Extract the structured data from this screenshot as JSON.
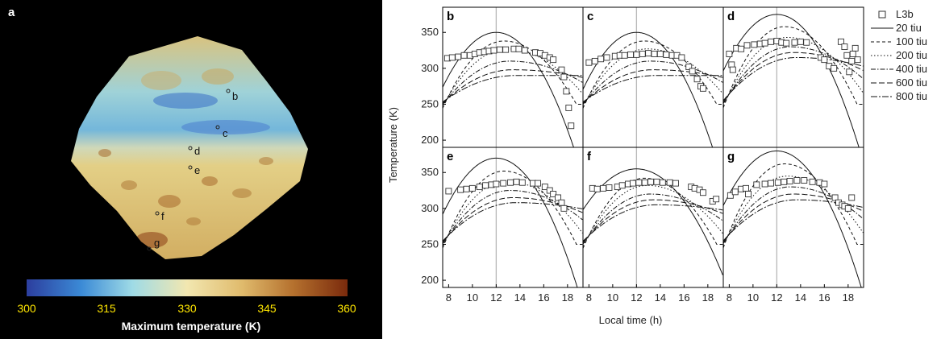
{
  "panel_a": {
    "letter": "a",
    "point_labels": [
      "b",
      "c",
      "d",
      "e",
      "f",
      "g"
    ],
    "colorbar": {
      "ticks": [
        "300",
        "315",
        "330",
        "345",
        "360"
      ],
      "label": "Maximum temperature (K)",
      "colors": [
        "#2c3e9e",
        "#3b8ad6",
        "#9fdbe6",
        "#f2e7b0",
        "#e0bb6d",
        "#b5712e",
        "#7a2a0c"
      ]
    }
  },
  "chart_data": {
    "type": "line",
    "xlabel": "Local time (h)",
    "ylabel": "Temperature (K)",
    "xlim": [
      7.5,
      19.3
    ],
    "ylim": [
      190,
      385
    ],
    "xticks": [
      "8",
      "10",
      "12",
      "14",
      "16",
      "18"
    ],
    "yticks": [
      "200",
      "250",
      "300",
      "350"
    ],
    "vline_x": 12,
    "legend": {
      "placement": "right",
      "entries": [
        {
          "name": "L3b",
          "style": "marker"
        },
        {
          "name": "20 tiu",
          "style": "solid"
        },
        {
          "name": "100 tiu",
          "style": "dashed"
        },
        {
          "name": "200 tiu",
          "style": "dotted"
        },
        {
          "name": "400 tiu",
          "style": "dashdot"
        },
        {
          "name": "600 tiu",
          "style": "longdash"
        },
        {
          "name": "800 tiu",
          "style": "longdashdot"
        }
      ]
    },
    "panels": [
      {
        "label": "b",
        "model_peaks": [
          350,
          338,
          327,
          310,
          298,
          290
        ],
        "sunset": 17.4,
        "obs": [
          [
            7.9,
            314
          ],
          [
            8.3,
            315
          ],
          [
            8.8,
            316
          ],
          [
            9.3,
            318
          ],
          [
            9.8,
            318
          ],
          [
            10.2,
            320
          ],
          [
            10.6,
            322
          ],
          [
            11.0,
            323
          ],
          [
            11.4,
            324
          ],
          [
            11.8,
            325
          ],
          [
            12.3,
            326
          ],
          [
            12.8,
            326
          ],
          [
            13.5,
            327
          ],
          [
            13.9,
            327
          ],
          [
            14.4,
            325
          ],
          [
            15.3,
            322
          ],
          [
            15.7,
            321
          ],
          [
            16.1,
            318
          ],
          [
            16.5,
            315
          ],
          [
            16.8,
            312
          ],
          [
            17.5,
            298
          ],
          [
            17.7,
            288
          ],
          [
            17.9,
            268
          ],
          [
            18.1,
            245
          ],
          [
            18.3,
            220
          ]
        ]
      },
      {
        "label": "c",
        "model_peaks": [
          350,
          338,
          327,
          310,
          298,
          290
        ],
        "sunset": 17.3,
        "obs": [
          [
            8.0,
            308
          ],
          [
            8.5,
            310
          ],
          [
            9.0,
            313
          ],
          [
            9.5,
            315
          ],
          [
            10.2,
            317
          ],
          [
            10.6,
            318
          ],
          [
            11.0,
            318
          ],
          [
            11.5,
            319
          ],
          [
            12.0,
            319
          ],
          [
            12.5,
            320
          ],
          [
            13.0,
            321
          ],
          [
            13.5,
            320
          ],
          [
            14.0,
            320
          ],
          [
            14.5,
            319
          ],
          [
            15.0,
            318
          ],
          [
            15.4,
            318
          ],
          [
            15.8,
            315
          ],
          [
            16.4,
            302
          ],
          [
            16.7,
            296
          ],
          [
            17.1,
            285
          ],
          [
            17.4,
            275
          ],
          [
            17.6,
            272
          ]
        ]
      },
      {
        "label": "d",
        "model_peaks": [
          375,
          358,
          343,
          330,
          322,
          315
        ],
        "sunset": 17.9,
        "obs": [
          [
            8.0,
            320
          ],
          [
            8.2,
            305
          ],
          [
            8.3,
            298
          ],
          [
            8.6,
            328
          ],
          [
            9.0,
            327
          ],
          [
            9.5,
            332
          ],
          [
            10.1,
            333
          ],
          [
            10.6,
            334
          ],
          [
            11.0,
            335
          ],
          [
            11.5,
            337
          ],
          [
            12.0,
            338
          ],
          [
            12.4,
            336
          ],
          [
            12.8,
            335
          ],
          [
            13.5,
            336
          ],
          [
            14.0,
            337
          ],
          [
            14.5,
            336
          ],
          [
            15.7,
            315
          ],
          [
            16.0,
            312
          ],
          [
            16.4,
            303
          ],
          [
            16.8,
            300
          ],
          [
            17.4,
            337
          ],
          [
            17.7,
            330
          ],
          [
            17.9,
            318
          ],
          [
            18.1,
            295
          ],
          [
            18.3,
            310
          ],
          [
            18.4,
            320
          ],
          [
            18.6,
            328
          ],
          [
            18.8,
            312
          ]
        ]
      },
      {
        "label": "e",
        "model_peaks": [
          370,
          352,
          338,
          325,
          315,
          308
        ],
        "sunset": 17.8,
        "obs": [
          [
            8.0,
            324
          ],
          [
            9.0,
            326
          ],
          [
            9.5,
            327
          ],
          [
            10.0,
            328
          ],
          [
            10.6,
            330
          ],
          [
            11.1,
            332
          ],
          [
            11.6,
            333
          ],
          [
            12.0,
            334
          ],
          [
            12.6,
            335
          ],
          [
            13.2,
            336
          ],
          [
            13.7,
            337
          ],
          [
            14.2,
            336
          ],
          [
            15.1,
            335
          ],
          [
            15.5,
            335
          ],
          [
            16.1,
            330
          ],
          [
            16.5,
            325
          ],
          [
            16.8,
            320
          ],
          [
            17.2,
            315
          ],
          [
            17.5,
            308
          ],
          [
            17.7,
            300
          ]
        ]
      },
      {
        "label": "f",
        "model_peaks": [
          355,
          342,
          332,
          320,
          312,
          305
        ],
        "sunset": 18.4,
        "obs": [
          [
            8.3,
            328
          ],
          [
            8.7,
            327
          ],
          [
            9.2,
            328
          ],
          [
            9.7,
            329
          ],
          [
            10.4,
            330
          ],
          [
            10.8,
            332
          ],
          [
            11.3,
            334
          ],
          [
            11.7,
            335
          ],
          [
            12.2,
            336
          ],
          [
            12.7,
            336
          ],
          [
            13.2,
            337
          ],
          [
            13.7,
            337
          ],
          [
            14.2,
            336
          ],
          [
            14.8,
            336
          ],
          [
            15.3,
            335
          ],
          [
            16.6,
            330
          ],
          [
            16.9,
            328
          ],
          [
            17.3,
            326
          ],
          [
            17.6,
            322
          ],
          [
            18.4,
            310
          ],
          [
            18.7,
            313
          ]
        ]
      },
      {
        "label": "g",
        "model_peaks": [
          380,
          362,
          345,
          330,
          320,
          312
        ],
        "sunset": 18.1,
        "obs": [
          [
            8.1,
            318
          ],
          [
            8.5,
            323
          ],
          [
            9.0,
            327
          ],
          [
            9.4,
            328
          ],
          [
            9.6,
            320
          ],
          [
            10.3,
            333
          ],
          [
            11.0,
            334
          ],
          [
            11.5,
            335
          ],
          [
            12.1,
            336
          ],
          [
            12.6,
            337
          ],
          [
            13.1,
            338
          ],
          [
            13.7,
            339
          ],
          [
            14.3,
            339
          ],
          [
            15.0,
            337
          ],
          [
            15.6,
            336
          ],
          [
            16.0,
            334
          ],
          [
            16.9,
            315
          ],
          [
            17.2,
            308
          ],
          [
            17.5,
            305
          ],
          [
            17.7,
            303
          ],
          [
            18.0,
            300
          ],
          [
            18.3,
            315
          ]
        ]
      }
    ]
  }
}
